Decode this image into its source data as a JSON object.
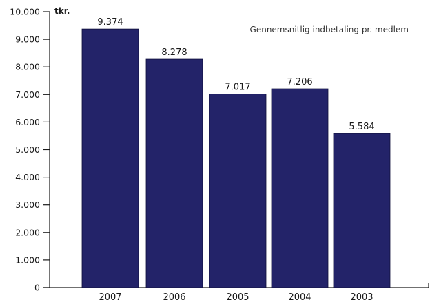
{
  "chart_data": {
    "type": "bar",
    "title": "Gennemsnitlig indbetaling pr. medlem",
    "ylabel": "tkr.",
    "xlabel": "",
    "categories": [
      "2007",
      "2006",
      "2005",
      "2004",
      "2003"
    ],
    "values": [
      9374,
      8278,
      7017,
      7206,
      5584
    ],
    "data_labels": [
      "9.374",
      "8.278",
      "7.017",
      "7.206",
      "5.584"
    ],
    "ylim": [
      0,
      10000
    ],
    "yticks": [
      0,
      1000,
      2000,
      3000,
      4000,
      5000,
      6000,
      7000,
      8000,
      9000,
      10000
    ],
    "ytick_labels": [
      "0",
      "1.000",
      "2.000",
      "3.000",
      "4.000",
      "5.000",
      "6.000",
      "7.000",
      "8.000",
      "9.000",
      "10.000"
    ],
    "bar_color": "#232369",
    "grid": false,
    "legend": "none"
  }
}
